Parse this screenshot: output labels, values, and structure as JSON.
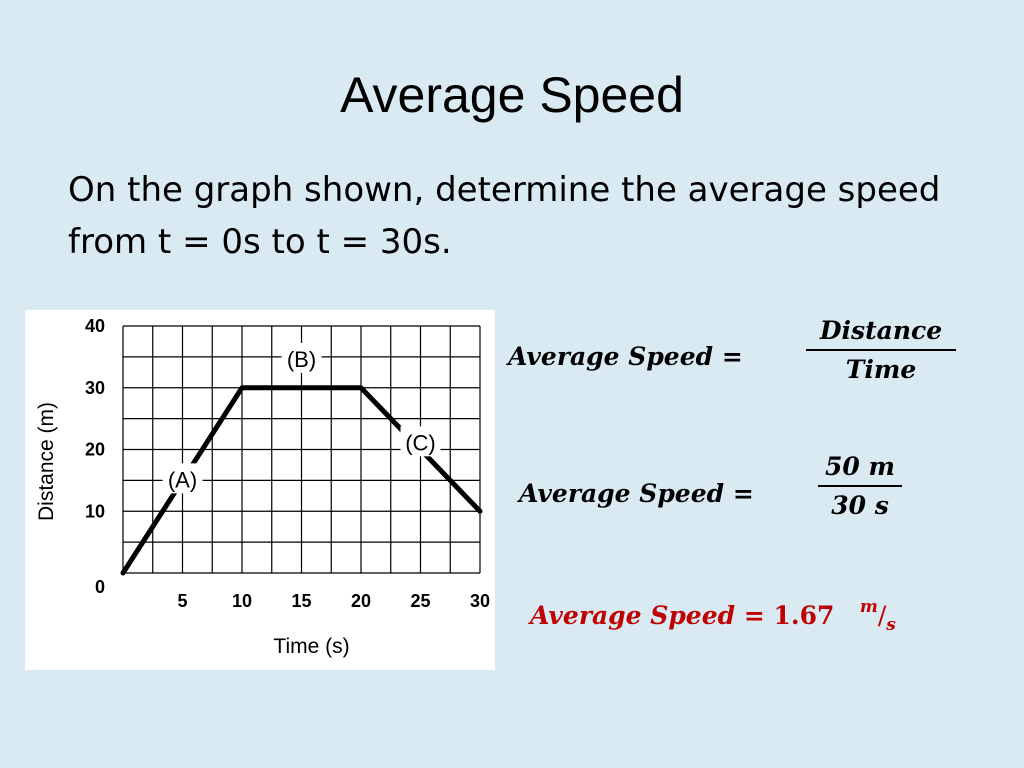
{
  "slide": {
    "title": "Average Speed",
    "prompt": "On the graph shown, determine the average speed from t = 0s to t = 30s."
  },
  "equations": {
    "lhs": "Average Speed",
    "equals": "=",
    "formula_num": "Distance",
    "formula_den": "Time",
    "sub_num": "50 m",
    "sub_den": "30 s",
    "result_value": "1.67",
    "result_unit_num": "m",
    "result_unit_slash": "/",
    "result_unit_den": "s",
    "result_color": "#c00000"
  },
  "chart_data": {
    "type": "line",
    "xlabel": "Time (s)",
    "ylabel": "Distance (m)",
    "xlim": [
      0,
      30
    ],
    "ylim": [
      0,
      40
    ],
    "x_ticks": [
      "5",
      "10",
      "15",
      "20",
      "25",
      "30"
    ],
    "y_ticks": [
      "0",
      "10",
      "20",
      "30",
      "40"
    ],
    "grid": true,
    "series": [
      {
        "x": [
          0,
          10,
          20,
          30
        ],
        "y": [
          0,
          30,
          30,
          10
        ]
      }
    ],
    "annotations": [
      {
        "text": "(A)",
        "x": 5,
        "y": 15
      },
      {
        "text": "(B)",
        "x": 15,
        "y": 34.5
      },
      {
        "text": "(C)",
        "x": 25,
        "y": 21
      }
    ]
  }
}
